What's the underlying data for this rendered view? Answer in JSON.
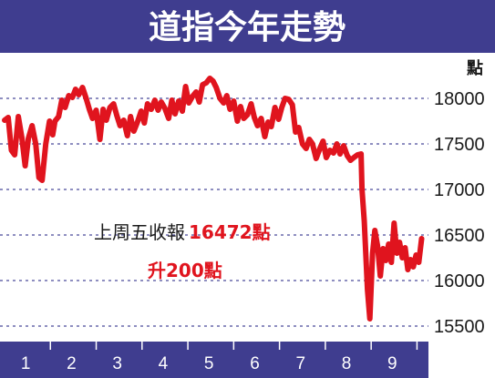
{
  "chart_data": {
    "type": "line",
    "title": "道指今年走勢",
    "unit": "點",
    "y_ticks": [
      {
        "label": "18000",
        "value": 18000
      },
      {
        "label": "17500",
        "value": 17500
      },
      {
        "label": "17000",
        "value": 17000
      },
      {
        "label": "16500",
        "value": 16500
      },
      {
        "label": "16000",
        "value": 16000
      },
      {
        "label": "15500",
        "value": 15500
      }
    ],
    "ylim": [
      15400,
      18400
    ],
    "x_categories": [
      "1",
      "2",
      "3",
      "4",
      "5",
      "6",
      "7",
      "8",
      "9"
    ],
    "xlim": [
      0,
      9.25
    ],
    "grid": "dashed-horizontal",
    "annotation": {
      "line1_black": "上周五收報",
      "line1_red": "16472點",
      "line2_red": "升200點"
    },
    "colors": {
      "line": "#e0141e",
      "header": "#3f3d8f",
      "axis_band": "#3f3d8f",
      "grid": "#4a4a9a"
    },
    "series": [
      {
        "x": [
          0.0,
          0.08,
          0.15,
          0.22,
          0.3,
          0.38,
          0.45,
          0.52,
          0.6,
          0.68,
          0.75,
          0.82,
          0.9,
          0.98,
          1.05,
          1.1,
          1.18,
          1.25,
          1.32,
          1.4,
          1.48,
          1.55,
          1.62,
          1.7,
          1.78,
          1.85,
          1.92,
          2.0,
          2.08,
          2.15,
          2.22,
          2.3,
          2.38,
          2.45,
          2.52,
          2.6,
          2.68,
          2.75,
          2.82,
          2.9,
          2.98,
          3.05,
          3.12,
          3.2,
          3.28,
          3.35,
          3.42,
          3.5,
          3.58,
          3.65,
          3.72,
          3.8,
          3.88,
          3.95,
          4.02,
          4.1,
          4.18,
          4.25,
          4.32,
          4.4,
          4.48,
          4.55,
          4.62,
          4.7,
          4.78,
          4.85,
          4.92,
          5.0,
          5.08,
          5.15,
          5.22,
          5.3,
          5.38,
          5.45,
          5.52,
          5.6,
          5.68,
          5.75,
          5.82,
          5.9,
          5.98,
          6.05,
          6.12,
          6.2,
          6.28,
          6.35,
          6.42,
          6.5,
          6.58,
          6.65,
          6.72,
          6.8,
          6.88,
          6.95,
          7.02,
          7.1,
          7.18,
          7.25,
          7.32,
          7.4,
          7.48,
          7.55,
          7.62,
          7.7,
          7.78,
          7.8,
          7.85,
          7.92,
          7.97,
          8.03,
          8.08,
          8.14,
          8.2,
          8.26,
          8.32,
          8.38,
          8.44,
          8.5,
          8.56,
          8.62,
          8.68,
          8.74,
          8.8,
          8.86,
          8.92,
          8.98,
          9.04,
          9.1
        ],
        "values": [
          17760,
          17790,
          17430,
          17380,
          17800,
          17560,
          17260,
          17560,
          17700,
          17500,
          17130,
          17100,
          17500,
          17750,
          17600,
          17750,
          17800,
          17980,
          17900,
          18030,
          18010,
          18100,
          18040,
          18120,
          18000,
          17880,
          17780,
          17870,
          17550,
          17880,
          17760,
          17900,
          17940,
          17810,
          17700,
          17760,
          17590,
          17800,
          17640,
          17740,
          17860,
          17730,
          17940,
          17880,
          17980,
          17870,
          17960,
          17890,
          17780,
          17980,
          17830,
          17970,
          17860,
          18130,
          17950,
          18020,
          18070,
          17960,
          18150,
          18170,
          18220,
          18190,
          18120,
          18000,
          17950,
          18030,
          17880,
          17970,
          17750,
          17910,
          17780,
          17820,
          17940,
          17790,
          17700,
          17780,
          17580,
          17740,
          17690,
          17900,
          17770,
          17900,
          18000,
          17990,
          17930,
          17630,
          17680,
          17500,
          17450,
          17550,
          17500,
          17340,
          17450,
          17530,
          17350,
          17430,
          17400,
          17500,
          17390,
          17480,
          17370,
          17320,
          17350,
          17380,
          17390,
          17000,
          16650,
          15900,
          15580,
          16300,
          16550,
          16380,
          16050,
          16350,
          16220,
          16400,
          16200,
          16630,
          16300,
          16420,
          16250,
          16360,
          16120,
          16230,
          16150,
          16280,
          16200,
          16460
        ]
      }
    ]
  }
}
